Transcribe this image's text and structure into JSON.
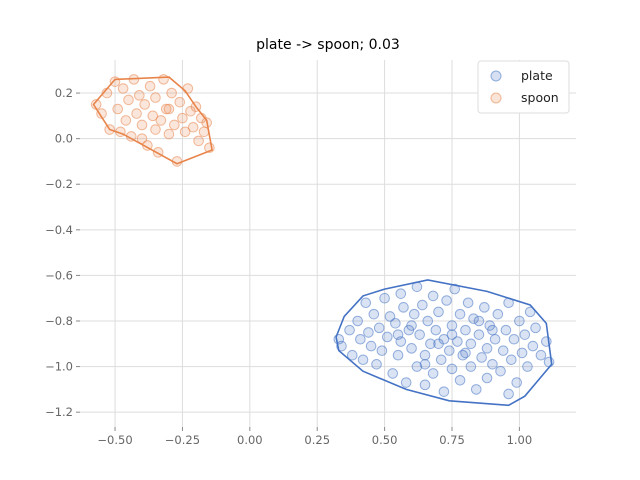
{
  "chart_data": {
    "type": "scatter",
    "title": "plate -> spoon; 0.03",
    "xlabel": "",
    "ylabel": "",
    "xlim": [
      -0.63,
      1.21
    ],
    "ylim": [
      -1.265,
      0.345
    ],
    "grid": true,
    "legend_position": "top-right",
    "x_ticks": [
      -0.5,
      -0.25,
      0.0,
      0.25,
      0.5,
      0.75,
      1.0
    ],
    "x_tick_labels": [
      "−0.50",
      "−0.25",
      "0.00",
      "0.25",
      "0.50",
      "0.75",
      "1.00"
    ],
    "y_ticks": [
      0.2,
      0.0,
      -0.2,
      -0.4,
      -0.6,
      -0.8,
      -1.0,
      -1.2
    ],
    "y_tick_labels": [
      "0.2",
      "0.0",
      "−0.2",
      "−0.4",
      "−0.6",
      "−0.8",
      "−1.0",
      "−1.2"
    ],
    "series": [
      {
        "name": "plate",
        "color": "#4472c4",
        "hull": [
          [
            0.32,
            -0.87
          ],
          [
            0.35,
            -0.78
          ],
          [
            0.42,
            -0.69
          ],
          [
            0.5,
            -0.66
          ],
          [
            0.66,
            -0.62
          ],
          [
            0.88,
            -0.67
          ],
          [
            1.04,
            -0.73
          ],
          [
            1.1,
            -0.81
          ],
          [
            1.12,
            -0.99
          ],
          [
            1.02,
            -1.13
          ],
          [
            0.96,
            -1.17
          ],
          [
            0.74,
            -1.15
          ],
          [
            0.58,
            -1.1
          ],
          [
            0.42,
            -1.02
          ],
          [
            0.33,
            -0.93
          ]
        ],
        "points": [
          [
            0.33,
            -0.88
          ],
          [
            0.34,
            -0.91
          ],
          [
            0.37,
            -0.84
          ],
          [
            0.38,
            -0.95
          ],
          [
            0.4,
            -0.8
          ],
          [
            0.41,
            -0.88
          ],
          [
            0.42,
            -0.97
          ],
          [
            0.43,
            -0.72
          ],
          [
            0.44,
            -0.85
          ],
          [
            0.45,
            -0.91
          ],
          [
            0.46,
            -0.77
          ],
          [
            0.47,
            -0.99
          ],
          [
            0.48,
            -0.83
          ],
          [
            0.49,
            -0.93
          ],
          [
            0.5,
            -0.7
          ],
          [
            0.51,
            -0.87
          ],
          [
            0.52,
            -0.78
          ],
          [
            0.53,
            -1.03
          ],
          [
            0.54,
            -0.81
          ],
          [
            0.55,
            -0.95
          ],
          [
            0.56,
            -0.68
          ],
          [
            0.56,
            -0.89
          ],
          [
            0.57,
            -0.74
          ],
          [
            0.58,
            -1.07
          ],
          [
            0.59,
            -0.84
          ],
          [
            0.6,
            -0.92
          ],
          [
            0.61,
            -0.77
          ],
          [
            0.62,
            -1.0
          ],
          [
            0.62,
            -0.65
          ],
          [
            0.63,
            -0.86
          ],
          [
            0.64,
            -0.73
          ],
          [
            0.65,
            -0.95
          ],
          [
            0.65,
            -1.08
          ],
          [
            0.66,
            -0.8
          ],
          [
            0.67,
            -0.9
          ],
          [
            0.68,
            -0.69
          ],
          [
            0.68,
            -1.03
          ],
          [
            0.69,
            -0.84
          ],
          [
            0.7,
            -0.76
          ],
          [
            0.71,
            -0.97
          ],
          [
            0.72,
            -0.88
          ],
          [
            0.72,
            -1.11
          ],
          [
            0.73,
            -0.71
          ],
          [
            0.74,
            -0.93
          ],
          [
            0.75,
            -0.82
          ],
          [
            0.75,
            -1.01
          ],
          [
            0.76,
            -0.66
          ],
          [
            0.77,
            -0.89
          ],
          [
            0.78,
            -0.77
          ],
          [
            0.78,
            -1.06
          ],
          [
            0.79,
            -0.95
          ],
          [
            0.8,
            -0.84
          ],
          [
            0.81,
            -0.72
          ],
          [
            0.82,
            -1.0
          ],
          [
            0.82,
            -0.9
          ],
          [
            0.83,
            -0.79
          ],
          [
            0.84,
            -1.1
          ],
          [
            0.85,
            -0.86
          ],
          [
            0.86,
            -0.96
          ],
          [
            0.87,
            -0.74
          ],
          [
            0.88,
            -0.92
          ],
          [
            0.88,
            -1.05
          ],
          [
            0.89,
            -0.82
          ],
          [
            0.9,
            -0.99
          ],
          [
            0.91,
            -0.88
          ],
          [
            0.92,
            -0.77
          ],
          [
            0.93,
            -1.02
          ],
          [
            0.94,
            -0.93
          ],
          [
            0.95,
            -0.84
          ],
          [
            0.96,
            -1.12
          ],
          [
            0.96,
            -0.72
          ],
          [
            0.97,
            -0.97
          ],
          [
            0.98,
            -0.88
          ],
          [
            0.99,
            -1.07
          ],
          [
            1.0,
            -0.8
          ],
          [
            1.01,
            -0.94
          ],
          [
            1.02,
            -0.86
          ],
          [
            1.03,
            -1.0
          ],
          [
            1.04,
            -0.76
          ],
          [
            1.05,
            -0.91
          ],
          [
            1.06,
            -0.83
          ],
          [
            1.08,
            -0.95
          ],
          [
            1.1,
            -0.89
          ],
          [
            1.11,
            -0.98
          ],
          [
            0.6,
            -0.82
          ],
          [
            0.7,
            -0.9
          ],
          [
            0.8,
            -0.94
          ],
          [
            0.55,
            -0.86
          ],
          [
            0.75,
            -0.86
          ],
          [
            0.85,
            -0.8
          ],
          [
            0.65,
            -0.99
          ],
          [
            0.9,
            -0.84
          ]
        ]
      },
      {
        "name": "spoon",
        "color": "#e8844a",
        "hull": [
          [
            -0.58,
            0.15
          ],
          [
            -0.5,
            0.26
          ],
          [
            -0.3,
            0.27
          ],
          [
            -0.24,
            0.21
          ],
          [
            -0.2,
            0.14
          ],
          [
            -0.16,
            0.08
          ],
          [
            -0.14,
            -0.05
          ],
          [
            -0.27,
            -0.11
          ],
          [
            -0.47,
            0.02
          ],
          [
            -0.52,
            0.04
          ]
        ],
        "points": [
          [
            -0.57,
            0.15
          ],
          [
            -0.55,
            0.11
          ],
          [
            -0.53,
            0.2
          ],
          [
            -0.52,
            0.04
          ],
          [
            -0.5,
            0.25
          ],
          [
            -0.49,
            0.13
          ],
          [
            -0.48,
            0.03
          ],
          [
            -0.47,
            0.22
          ],
          [
            -0.46,
            0.08
          ],
          [
            -0.45,
            0.17
          ],
          [
            -0.44,
            0.01
          ],
          [
            -0.43,
            0.26
          ],
          [
            -0.42,
            0.11
          ],
          [
            -0.41,
            0.19
          ],
          [
            -0.4,
            0.06
          ],
          [
            -0.39,
            0.15
          ],
          [
            -0.38,
            -0.03
          ],
          [
            -0.37,
            0.23
          ],
          [
            -0.36,
            0.1
          ],
          [
            -0.35,
            0.18
          ],
          [
            -0.34,
            -0.06
          ],
          [
            -0.33,
            0.08
          ],
          [
            -0.32,
            0.26
          ],
          [
            -0.31,
            0.13
          ],
          [
            -0.3,
            0.02
          ],
          [
            -0.29,
            0.2
          ],
          [
            -0.28,
            0.06
          ],
          [
            -0.27,
            -0.1
          ],
          [
            -0.26,
            0.16
          ],
          [
            -0.25,
            0.09
          ],
          [
            -0.24,
            0.03
          ],
          [
            -0.23,
            0.22
          ],
          [
            -0.22,
            0.12
          ],
          [
            -0.21,
            0.05
          ],
          [
            -0.2,
            0.14
          ],
          [
            -0.19,
            -0.01
          ],
          [
            -0.18,
            0.09
          ],
          [
            -0.17,
            0.03
          ],
          [
            -0.16,
            0.07
          ],
          [
            -0.15,
            -0.04
          ],
          [
            -0.35,
            0.04
          ],
          [
            -0.3,
            0.13
          ],
          [
            -0.4,
            0.0
          ]
        ]
      }
    ]
  }
}
